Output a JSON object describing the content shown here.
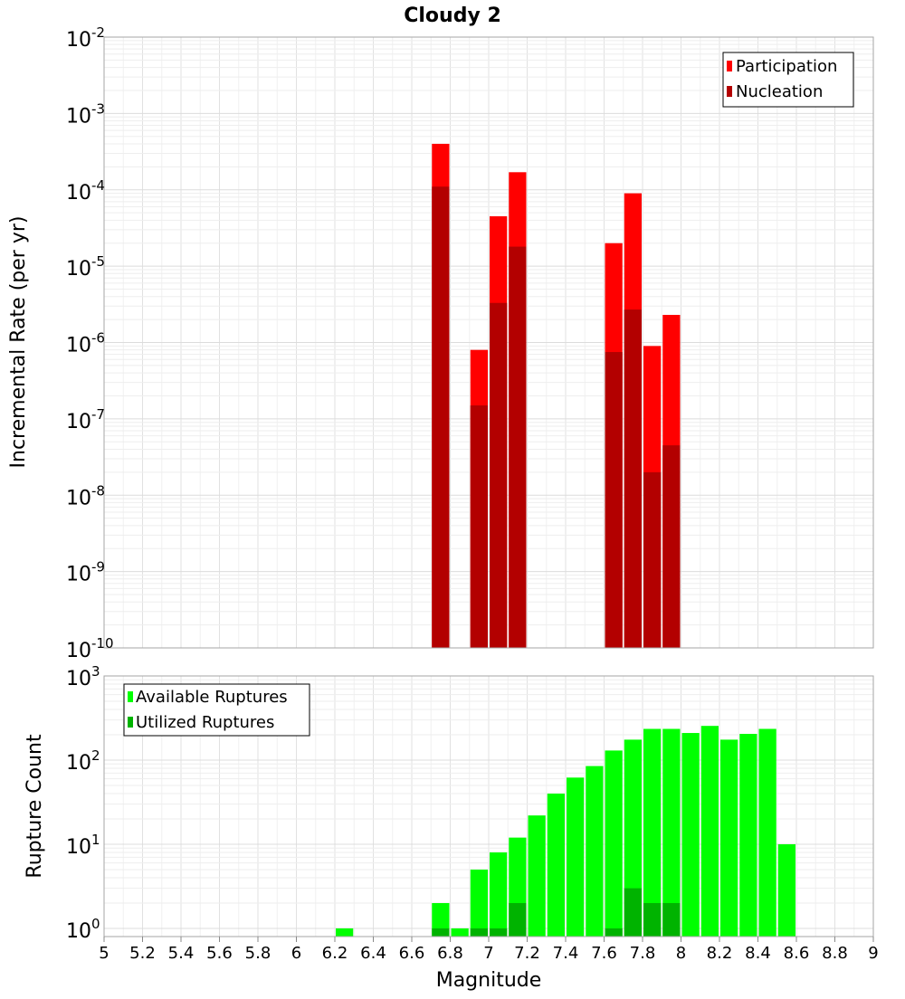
{
  "title": "Cloudy 2",
  "chart_data": [
    {
      "type": "bar",
      "ylabel": "Incremental Rate (per yr)",
      "yscale": "log",
      "ylim": [
        1e-10,
        0.01
      ],
      "xlim": [
        5,
        9
      ],
      "bin_width": 0.1,
      "y_ticks": [
        {
          "base": "10",
          "exp": "-2"
        },
        {
          "base": "10",
          "exp": "-3"
        },
        {
          "base": "10",
          "exp": "-4"
        },
        {
          "base": "10",
          "exp": "-5"
        },
        {
          "base": "10",
          "exp": "-6"
        },
        {
          "base": "10",
          "exp": "-7"
        },
        {
          "base": "10",
          "exp": "-8"
        },
        {
          "base": "10",
          "exp": "-9"
        },
        {
          "base": "10",
          "exp": "-10"
        }
      ],
      "legend_position": "top-right",
      "series": [
        {
          "name": "Participation",
          "color": "#ff0000",
          "x": [
            6.75,
            6.95,
            7.05,
            7.15,
            7.65,
            7.75,
            7.85,
            7.95
          ],
          "values": [
            0.0004,
            8e-07,
            4.5e-05,
            0.00017,
            2e-05,
            9e-05,
            9e-07,
            2.3e-06
          ]
        },
        {
          "name": "Nucleation",
          "color": "#b30000",
          "x": [
            6.75,
            6.95,
            7.05,
            7.15,
            7.65,
            7.75,
            7.85,
            7.95
          ],
          "values": [
            0.00011,
            1.5e-07,
            3.3e-06,
            1.8e-05,
            7.5e-07,
            2.7e-06,
            2e-08,
            4.5e-08
          ]
        }
      ]
    },
    {
      "type": "bar",
      "ylabel": "Rupture Count",
      "xlabel": "Magnitude",
      "yscale": "log",
      "ylim": [
        0.8,
        1000
      ],
      "xlim": [
        5,
        9
      ],
      "bin_width": 0.1,
      "y_ticks": [
        {
          "base": "10",
          "exp": "3",
          "value": 1000
        },
        {
          "base": "10",
          "exp": "2",
          "value": 100
        },
        {
          "base": "10",
          "exp": "1",
          "value": 10
        },
        {
          "base": "10",
          "exp": "0",
          "value": 1
        }
      ],
      "x_ticks": [
        "5",
        "5.2",
        "5.4",
        "5.6",
        "5.8",
        "6",
        "6.2",
        "6.4",
        "6.6",
        "6.8",
        "7",
        "7.2",
        "7.4",
        "7.6",
        "7.8",
        "8",
        "8.2",
        "8.4",
        "8.6",
        "8.8",
        "9"
      ],
      "legend_position": "top-left",
      "series": [
        {
          "name": "Available Ruptures",
          "color": "#00ff00",
          "x": [
            6.25,
            6.75,
            6.85,
            6.95,
            7.05,
            7.15,
            7.25,
            7.35,
            7.45,
            7.55,
            7.65,
            7.75,
            7.85,
            7.95,
            8.05,
            8.15,
            8.25,
            8.35,
            8.45,
            8.55
          ],
          "values": [
            1,
            2,
            1,
            5,
            8,
            12,
            22,
            40,
            62,
            85,
            130,
            175,
            235,
            235,
            210,
            255,
            175,
            205,
            235,
            10
          ]
        },
        {
          "name": "Utilized Ruptures",
          "color": "#00b300",
          "x": [
            6.75,
            6.95,
            7.05,
            7.15,
            7.65,
            7.75,
            7.85,
            7.95
          ],
          "values": [
            1,
            1,
            1,
            2,
            1,
            3,
            2,
            2
          ]
        }
      ]
    }
  ]
}
